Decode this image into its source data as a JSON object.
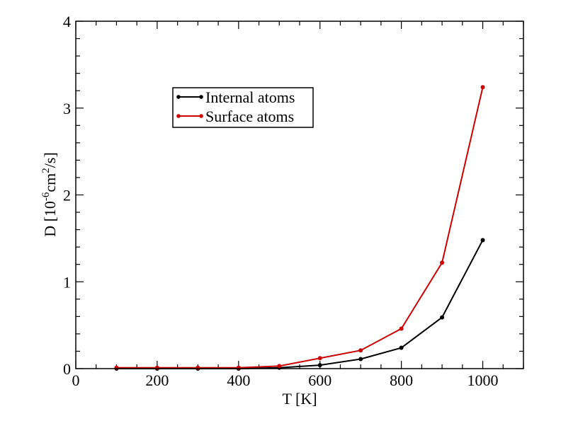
{
  "chart_data": {
    "type": "line",
    "title": "",
    "xlabel": "T [K]",
    "ylabel": {
      "prefix": "D [10",
      "exp1": "-6",
      "middle": "cm",
      "exp2": "2",
      "suffix": "/s]"
    },
    "xlim": [
      0,
      1100
    ],
    "ylim": [
      0,
      4
    ],
    "x_ticks": [
      0,
      200,
      400,
      600,
      800,
      1000
    ],
    "x_tick_labels": [
      "0",
      "200",
      "400",
      "600",
      "800",
      "1000"
    ],
    "y_ticks": [
      0,
      1,
      2,
      3,
      4
    ],
    "y_tick_labels": [
      "0",
      "1",
      "2",
      "3",
      "4"
    ],
    "x_minor_step": 50,
    "y_minor_step": 0.2,
    "grid": false,
    "legend_position": "upper-left inside plot",
    "x": [
      100,
      200,
      300,
      400,
      500,
      600,
      700,
      800,
      900,
      1000
    ],
    "series": [
      {
        "name": "Internal atoms",
        "color": "#000000",
        "values": [
          0.0,
          0.0,
          0.0,
          0.0,
          0.01,
          0.04,
          0.11,
          0.24,
          0.59,
          1.48
        ]
      },
      {
        "name": "Surface atoms",
        "color": "#cc0000",
        "values": [
          0.01,
          0.01,
          0.01,
          0.01,
          0.03,
          0.12,
          0.21,
          0.46,
          1.22,
          3.24
        ]
      }
    ]
  }
}
